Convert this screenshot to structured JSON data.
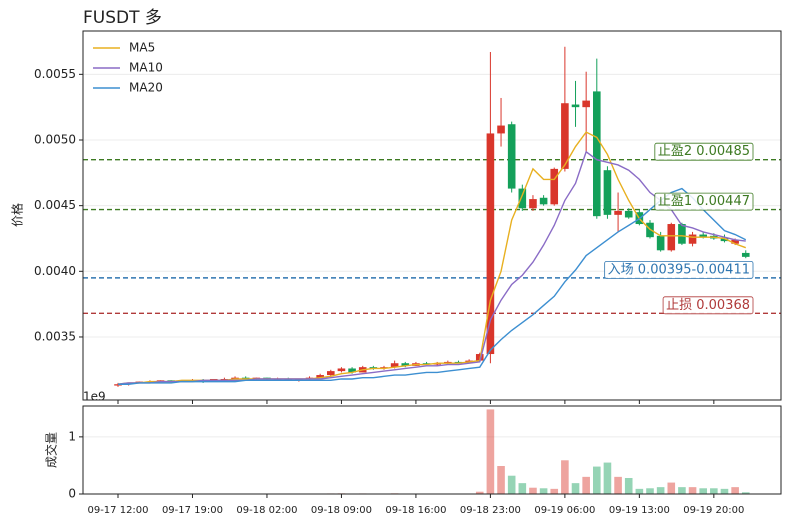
{
  "chart_data": {
    "type": "candlestick",
    "title": "FUSDT  多",
    "ylabel": "价格",
    "volume_label": "成交量",
    "volume_offset": "1e9",
    "categories": [
      "09-17 12:00",
      null,
      null,
      null,
      null,
      null,
      null,
      "09-17 19:00",
      null,
      null,
      null,
      null,
      null,
      null,
      "09-18 02:00",
      null,
      null,
      null,
      null,
      null,
      null,
      "09-18 09:00",
      null,
      null,
      null,
      null,
      null,
      null,
      "09-18 16:00",
      null,
      null,
      null,
      null,
      null,
      null,
      "09-18 23:00",
      null,
      null,
      null,
      null,
      null,
      null,
      "09-19 06:00",
      null,
      null,
      null,
      null,
      null,
      null,
      "09-19 13:00",
      null,
      null,
      null,
      null,
      null,
      null,
      "09-19 20:00",
      null,
      null,
      null
    ],
    "open": [
      0.00313,
      0.00314,
      0.00315,
      0.00316,
      0.00316,
      0.00317,
      0.00316,
      0.00317,
      0.00317,
      0.00316,
      0.00318,
      0.00318,
      0.00319,
      0.00318,
      0.00319,
      0.00318,
      0.00318,
      0.00317,
      0.00318,
      0.00319,
      0.00321,
      0.00324,
      0.00326,
      0.00323,
      0.00327,
      0.00326,
      0.00327,
      0.0033,
      0.00328,
      0.0033,
      0.00329,
      0.0033,
      0.00331,
      0.0033,
      0.00332,
      0.00337,
      0.00505,
      0.00512,
      0.00463,
      0.00448,
      0.00456,
      0.00451,
      0.00478,
      0.00527,
      0.00525,
      0.00537,
      0.00477,
      0.00443,
      0.00446,
      0.00445,
      0.00437,
      0.00427,
      0.00416,
      0.00436,
      0.00421,
      0.00428,
      0.00427,
      0.00425,
      0.00421,
      0.00414
    ],
    "high": [
      0.00315,
      0.00315,
      0.00316,
      0.00317,
      0.00317,
      0.00317,
      0.00317,
      0.00318,
      0.00318,
      0.00318,
      0.00319,
      0.0032,
      0.0032,
      0.00319,
      0.00319,
      0.00319,
      0.00319,
      0.00318,
      0.0032,
      0.00322,
      0.00325,
      0.00327,
      0.00327,
      0.00328,
      0.00328,
      0.00328,
      0.00332,
      0.00331,
      0.00331,
      0.00331,
      0.00331,
      0.00332,
      0.00332,
      0.00333,
      0.00338,
      0.00567,
      0.00532,
      0.00514,
      0.00466,
      0.00458,
      0.00458,
      0.00479,
      0.00571,
      0.00545,
      0.00552,
      0.00562,
      0.0048,
      0.0046,
      0.00448,
      0.00447,
      0.00439,
      0.0043,
      0.00437,
      0.00437,
      0.0043,
      0.0043,
      0.00429,
      0.00428,
      0.00425,
      0.00416
    ],
    "low": [
      0.00312,
      0.00313,
      0.00315,
      0.00315,
      0.00316,
      0.00316,
      0.00316,
      0.00316,
      0.00315,
      0.00316,
      0.00317,
      0.00318,
      0.00318,
      0.00317,
      0.00317,
      0.00317,
      0.00317,
      0.00316,
      0.00317,
      0.00319,
      0.0032,
      0.00323,
      0.00322,
      0.00323,
      0.00325,
      0.00325,
      0.00326,
      0.00327,
      0.00328,
      0.00329,
      0.00328,
      0.00329,
      0.0033,
      0.0033,
      0.00331,
      0.0033,
      0.00495,
      0.0046,
      0.00446,
      0.00446,
      0.0045,
      0.0045,
      0.00476,
      0.0051,
      0.0049,
      0.0044,
      0.0044,
      0.0043,
      0.0044,
      0.00435,
      0.00425,
      0.00415,
      0.00415,
      0.0042,
      0.00419,
      0.00425,
      0.00424,
      0.00422,
      0.0042,
      0.0041
    ],
    "close": [
      0.00314,
      0.00315,
      0.00316,
      0.00316,
      0.00317,
      0.00316,
      0.00317,
      0.00317,
      0.00316,
      0.00318,
      0.00318,
      0.00319,
      0.00318,
      0.00319,
      0.00318,
      0.00318,
      0.00317,
      0.00318,
      0.00319,
      0.00321,
      0.00324,
      0.00326,
      0.00323,
      0.00327,
      0.00326,
      0.00327,
      0.0033,
      0.00328,
      0.0033,
      0.00329,
      0.0033,
      0.00331,
      0.0033,
      0.00332,
      0.00337,
      0.00505,
      0.00511,
      0.00463,
      0.00448,
      0.00455,
      0.00451,
      0.00478,
      0.00528,
      0.00525,
      0.0053,
      0.00442,
      0.00443,
      0.00446,
      0.00441,
      0.00436,
      0.00426,
      0.00416,
      0.00436,
      0.00421,
      0.00428,
      0.00426,
      0.00425,
      0.00423,
      0.00424,
      0.00411
    ],
    "volume": [
      0.005,
      0.004,
      0.004,
      0.003,
      0.004,
      0.003,
      0.004,
      0.003,
      0.005,
      0.004,
      0.003,
      0.004,
      0.003,
      0.003,
      0.004,
      0.003,
      0.003,
      0.004,
      0.005,
      0.006,
      0.01,
      0.012,
      0.008,
      0.01,
      0.006,
      0.006,
      0.012,
      0.008,
      0.007,
      0.006,
      0.006,
      0.007,
      0.006,
      0.008,
      0.04,
      1.48,
      0.49,
      0.32,
      0.19,
      0.11,
      0.1,
      0.09,
      0.59,
      0.19,
      0.3,
      0.48,
      0.55,
      0.3,
      0.28,
      0.09,
      0.1,
      0.12,
      0.2,
      0.12,
      0.12,
      0.1,
      0.1,
      0.09,
      0.12,
      0.03
    ],
    "up_color": "#d9362b",
    "down_color": "#14a05a",
    "series": [
      {
        "name": "MA5",
        "color": "#e8b020",
        "values": [
          0.00314,
          0.00315,
          0.00315,
          0.00316,
          0.00316,
          0.00316,
          0.00317,
          0.00317,
          0.00317,
          0.00317,
          0.00317,
          0.00318,
          0.00318,
          0.00318,
          0.00318,
          0.00318,
          0.00318,
          0.00318,
          0.00318,
          0.00319,
          0.0032,
          0.00322,
          0.00323,
          0.00325,
          0.00326,
          0.00326,
          0.00327,
          0.00328,
          0.00329,
          0.00329,
          0.0033,
          0.0033,
          0.0033,
          0.00331,
          0.00332,
          0.00378,
          0.004,
          0.00439,
          0.00458,
          0.00478,
          0.0047,
          0.0047,
          0.00481,
          0.00495,
          0.00506,
          0.00502,
          0.00489,
          0.0047,
          0.00454,
          0.0044,
          0.00432,
          0.00427,
          0.00427,
          0.00427,
          0.00426,
          0.00426,
          0.00426,
          0.00425,
          0.00421,
          0.00418
        ]
      },
      {
        "name": "MA10",
        "color": "#8a6cc6",
        "values": [
          0.00314,
          0.00315,
          0.00315,
          0.00315,
          0.00316,
          0.00316,
          0.00316,
          0.00316,
          0.00317,
          0.00317,
          0.00317,
          0.00317,
          0.00317,
          0.00318,
          0.00318,
          0.00318,
          0.00318,
          0.00318,
          0.00318,
          0.00318,
          0.00319,
          0.0032,
          0.00321,
          0.00322,
          0.00323,
          0.00324,
          0.00325,
          0.00326,
          0.00327,
          0.00328,
          0.00328,
          0.00329,
          0.00329,
          0.0033,
          0.00331,
          0.00363,
          0.00378,
          0.0039,
          0.00397,
          0.00407,
          0.0042,
          0.00435,
          0.00454,
          0.00467,
          0.00491,
          0.00485,
          0.00483,
          0.00481,
          0.00477,
          0.0047,
          0.0046,
          0.00454,
          0.00447,
          0.00435,
          0.00433,
          0.0043,
          0.00428,
          0.00426,
          0.00424,
          0.00423
        ]
      },
      {
        "name": "MA20",
        "color": "#3d8fd1",
        "values": [
          0.00314,
          0.00314,
          0.00315,
          0.00315,
          0.00315,
          0.00315,
          0.00316,
          0.00316,
          0.00316,
          0.00316,
          0.00316,
          0.00316,
          0.00317,
          0.00317,
          0.00317,
          0.00317,
          0.00317,
          0.00317,
          0.00317,
          0.00317,
          0.00317,
          0.00318,
          0.00318,
          0.00319,
          0.00319,
          0.0032,
          0.00321,
          0.00321,
          0.00322,
          0.00323,
          0.00323,
          0.00324,
          0.00325,
          0.00326,
          0.00327,
          0.0034,
          0.00348,
          0.00355,
          0.00361,
          0.00367,
          0.00374,
          0.00381,
          0.00392,
          0.00401,
          0.00412,
          0.00418,
          0.00424,
          0.0043,
          0.00435,
          0.0044,
          0.00447,
          0.00454,
          0.0046,
          0.00463,
          0.00456,
          0.00447,
          0.00439,
          0.00431,
          0.00428,
          0.00424
        ]
      }
    ],
    "levels": [
      {
        "label": "止盈2 0.00485",
        "value": 0.00485,
        "color": "#3d7a22"
      },
      {
        "label": "止盈1 0.00447",
        "value": 0.00447,
        "color": "#3d7a22"
      },
      {
        "label": "入场 0.00395-0.00411",
        "value": 0.00395,
        "color": "#2e75b0"
      },
      {
        "label": "止损 0.00368",
        "value": 0.00368,
        "color": "#b03a3a"
      }
    ],
    "ylim": [
      0.00302,
      0.00583
    ],
    "yticks": [
      0.0035,
      {
        "value": 0.004,
        "label": "0.0040"
      },
      0.0045,
      {
        "value": 0.005,
        "label": "0.0050"
      },
      0.0055
    ],
    "volume_ylim": [
      0,
      1.54
    ],
    "volume_yticks": [
      0,
      1
    ],
    "grid": true,
    "legend": "upper left"
  }
}
